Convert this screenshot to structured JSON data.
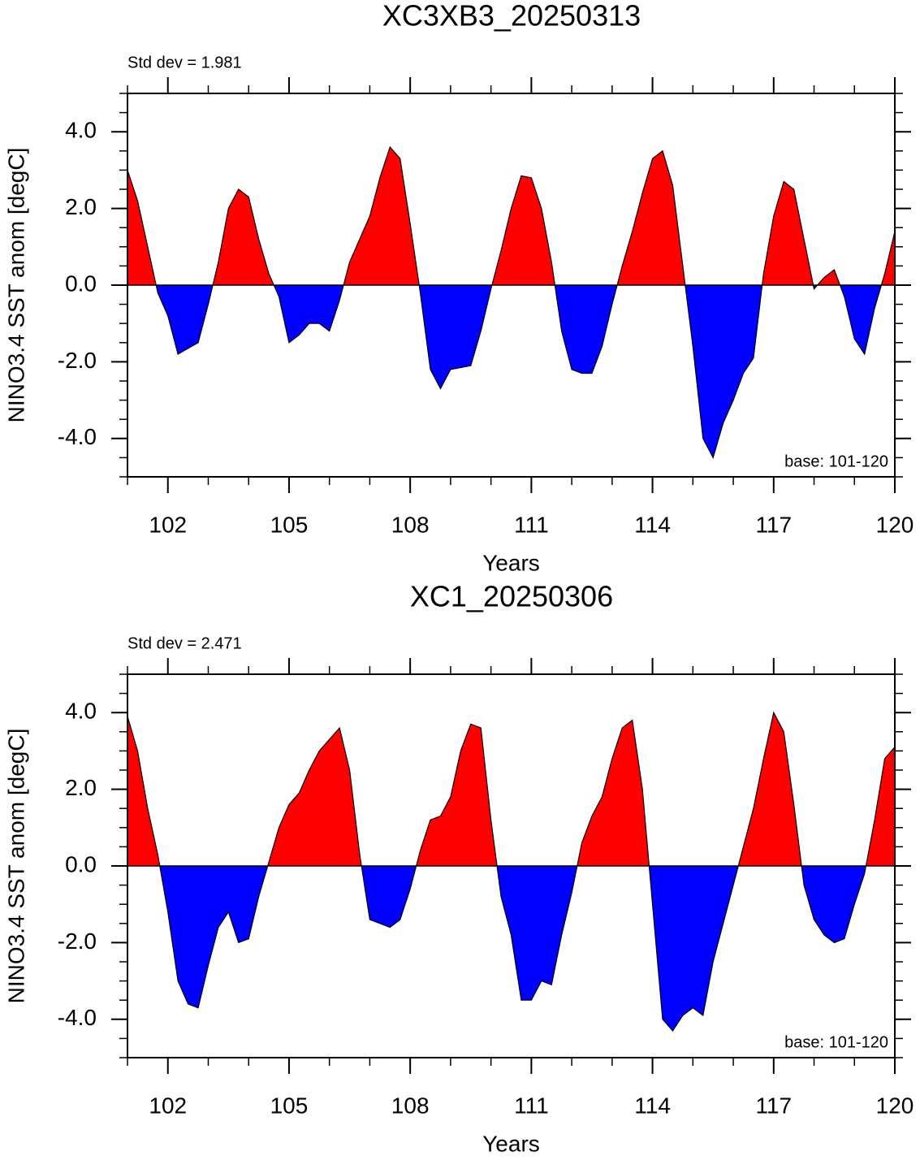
{
  "chart_data": [
    {
      "type": "area",
      "title": "XC3XB3_20250313",
      "annotation": "Std dev = 1.981",
      "base_label": "base: 101-120",
      "xlabel": "Years",
      "ylabel": "NINO3.4 SST anom [degC]",
      "above_color": "#ff0000",
      "below_color": "#0000ff",
      "xlim": [
        101,
        120
      ],
      "ylim": [
        -5,
        5
      ],
      "xticks": [
        102,
        105,
        108,
        111,
        114,
        117,
        120
      ],
      "xminorticks": [
        101,
        102,
        103,
        104,
        105,
        106,
        107,
        108,
        109,
        110,
        111,
        112,
        113,
        114,
        115,
        116,
        117,
        118,
        119,
        120
      ],
      "yticks": [
        {
          "value": -4,
          "label": "-4.0"
        },
        {
          "value": -2,
          "label": "-2.0"
        },
        {
          "value": 0,
          "label": "0.0"
        },
        {
          "value": 2,
          "label": "2.0"
        },
        {
          "value": 4,
          "label": "4.0"
        }
      ],
      "yminorticks": [
        -5,
        -4.5,
        -4,
        -3.5,
        -3,
        -2.5,
        -2,
        -1.5,
        -1,
        -0.5,
        0,
        0.5,
        1,
        1.5,
        2,
        2.5,
        3,
        3.5,
        4,
        4.5,
        5
      ],
      "x": [
        101,
        101.25,
        101.5,
        101.75,
        102,
        102.25,
        102.5,
        102.75,
        103,
        103.25,
        103.5,
        103.75,
        104,
        104.25,
        104.5,
        104.75,
        105,
        105.25,
        105.5,
        105.75,
        106,
        106.25,
        106.5,
        106.75,
        107,
        107.25,
        107.5,
        107.75,
        108,
        108.25,
        108.5,
        108.75,
        109,
        109.25,
        109.5,
        109.75,
        110,
        110.25,
        110.5,
        110.75,
        111,
        111.25,
        111.5,
        111.75,
        112,
        112.25,
        112.5,
        112.75,
        113,
        113.25,
        113.5,
        113.75,
        114,
        114.25,
        114.5,
        114.75,
        115,
        115.25,
        115.5,
        115.75,
        116,
        116.25,
        116.5,
        116.75,
        117,
        117.25,
        117.5,
        117.75,
        118,
        118.25,
        118.5,
        118.75,
        119,
        119.25,
        119.5,
        119.75,
        120
      ],
      "values": [
        3.0,
        2.2,
        1.0,
        -0.2,
        -0.8,
        -1.8,
        -1.65,
        -1.5,
        -0.5,
        0.6,
        2.0,
        2.5,
        2.3,
        1.2,
        0.3,
        -0.3,
        -1.5,
        -1.3,
        -1.0,
        -1.0,
        -1.2,
        -0.4,
        0.6,
        1.2,
        1.8,
        2.8,
        3.6,
        3.3,
        1.6,
        -0.2,
        -2.2,
        -2.7,
        -2.2,
        -2.15,
        -2.1,
        -1.2,
        -0.1,
        0.9,
        2.0,
        2.85,
        2.8,
        2.0,
        0.6,
        -1.2,
        -2.2,
        -2.3,
        -2.3,
        -1.6,
        -0.5,
        0.5,
        1.4,
        2.4,
        3.3,
        3.5,
        2.6,
        0.5,
        -1.6,
        -4.0,
        -4.5,
        -3.6,
        -3.0,
        -2.3,
        -1.9,
        0.3,
        1.8,
        2.7,
        2.5,
        1.2,
        -0.1,
        0.2,
        0.4,
        -0.3,
        -1.4,
        -1.8,
        -0.6,
        0.3,
        1.4
      ]
    },
    {
      "type": "area",
      "title": "XC1_20250306",
      "annotation": "Std dev = 2.471",
      "base_label": "base: 101-120",
      "xlabel": "Years",
      "ylabel": "NINO3.4 SST anom [degC]",
      "above_color": "#ff0000",
      "below_color": "#0000ff",
      "xlim": [
        101,
        120
      ],
      "ylim": [
        -5,
        5
      ],
      "xticks": [
        102,
        105,
        108,
        111,
        114,
        117,
        120
      ],
      "xminorticks": [
        101,
        102,
        103,
        104,
        105,
        106,
        107,
        108,
        109,
        110,
        111,
        112,
        113,
        114,
        115,
        116,
        117,
        118,
        119,
        120
      ],
      "yticks": [
        {
          "value": -4,
          "label": "-4.0"
        },
        {
          "value": -2,
          "label": "-2.0"
        },
        {
          "value": 0,
          "label": "0.0"
        },
        {
          "value": 2,
          "label": "2.0"
        },
        {
          "value": 4,
          "label": "4.0"
        }
      ],
      "yminorticks": [
        -5,
        -4.5,
        -4,
        -3.5,
        -3,
        -2.5,
        -2,
        -1.5,
        -1,
        -0.5,
        0,
        0.5,
        1,
        1.5,
        2,
        2.5,
        3,
        3.5,
        4,
        4.5,
        5
      ],
      "x": [
        101,
        101.25,
        101.5,
        101.75,
        102,
        102.25,
        102.5,
        102.75,
        103,
        103.25,
        103.5,
        103.75,
        104,
        104.25,
        104.5,
        104.75,
        105,
        105.25,
        105.5,
        105.75,
        106,
        106.25,
        106.5,
        106.75,
        107,
        107.25,
        107.5,
        107.75,
        108,
        108.25,
        108.5,
        108.75,
        109,
        109.25,
        109.5,
        109.75,
        110,
        110.25,
        110.5,
        110.75,
        111,
        111.25,
        111.5,
        111.75,
        112,
        112.25,
        112.5,
        112.75,
        113,
        113.25,
        113.5,
        113.75,
        114,
        114.25,
        114.5,
        114.75,
        115,
        115.25,
        115.5,
        115.75,
        116,
        116.25,
        116.5,
        116.75,
        117,
        117.25,
        117.5,
        117.75,
        118,
        118.25,
        118.5,
        118.75,
        119,
        119.25,
        119.5,
        119.75,
        120
      ],
      "values": [
        3.9,
        3.0,
        1.5,
        0.3,
        -1.2,
        -3.0,
        -3.6,
        -3.7,
        -2.6,
        -1.6,
        -1.2,
        -2.0,
        -1.9,
        -0.8,
        0.1,
        1.0,
        1.6,
        1.9,
        2.5,
        3.0,
        3.3,
        3.6,
        2.5,
        0.3,
        -1.4,
        -1.5,
        -1.6,
        -1.4,
        -0.6,
        0.4,
        1.2,
        1.3,
        1.8,
        3.0,
        3.7,
        3.6,
        1.2,
        -0.8,
        -1.8,
        -3.5,
        -3.5,
        -3.0,
        -3.1,
        -1.8,
        -0.7,
        0.6,
        1.3,
        1.8,
        2.8,
        3.6,
        3.8,
        2.0,
        -1.0,
        -4.0,
        -4.3,
        -3.9,
        -3.7,
        -3.9,
        -2.5,
        -1.5,
        -0.5,
        0.5,
        1.5,
        2.8,
        4.0,
        3.5,
        1.6,
        -0.5,
        -1.4,
        -1.8,
        -2.0,
        -1.9,
        -1.0,
        -0.2,
        1.2,
        2.8,
        3.1
      ]
    }
  ]
}
